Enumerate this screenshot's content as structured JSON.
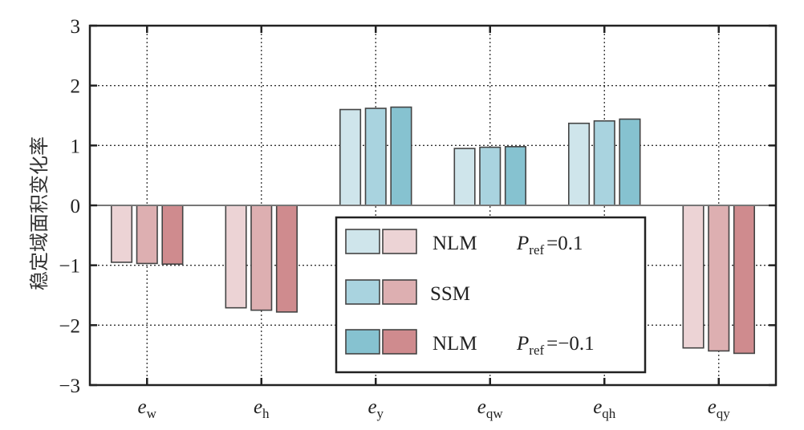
{
  "chart_data": {
    "type": "bar",
    "title": "",
    "xlabel": "",
    "ylabel": "稳定域面积变化率",
    "ylim": [
      -3,
      3
    ],
    "yticks": [
      3,
      2,
      1,
      0,
      -1,
      -2,
      -3
    ],
    "ytick_labels": [
      "3",
      "2",
      "1",
      "0",
      "−1",
      "−2",
      "−3"
    ],
    "grid": true,
    "categories": [
      {
        "base": "e",
        "sub": "w"
      },
      {
        "base": "e",
        "sub": "h"
      },
      {
        "base": "e",
        "sub": "y"
      },
      {
        "base": "e",
        "sub": "qw"
      },
      {
        "base": "e",
        "sub": "qh"
      },
      {
        "base": "e",
        "sub": "qy"
      }
    ],
    "series": [
      {
        "name": "NLM Pref=0.1",
        "values": [
          -0.95,
          -1.71,
          1.6,
          0.95,
          1.37,
          -2.38
        ]
      },
      {
        "name": "SSM",
        "values": [
          -0.97,
          -1.75,
          1.62,
          0.97,
          1.41,
          -2.43
        ]
      },
      {
        "name": "NLM Pref=-0.1",
        "values": [
          -0.98,
          -1.78,
          1.64,
          0.98,
          1.44,
          -2.47
        ]
      }
    ],
    "colors": {
      "positive": [
        "#cfe5eb",
        "#a9d3df",
        "#86c2d0"
      ],
      "negative": [
        "#ecd3d5",
        "#ddafb1",
        "#cf8b8e"
      ],
      "edge": "#444444"
    },
    "legend": {
      "placement": "center-bottom",
      "entries": [
        {
          "model": "NLM",
          "param_base": "P",
          "param_sub": "ref",
          "param_value": "=0.1"
        },
        {
          "model": "SSM",
          "param_base": "",
          "param_sub": "",
          "param_value": ""
        },
        {
          "model": "NLM",
          "param_base": "P",
          "param_sub": "ref",
          "param_value": "=−0.1"
        }
      ]
    }
  }
}
